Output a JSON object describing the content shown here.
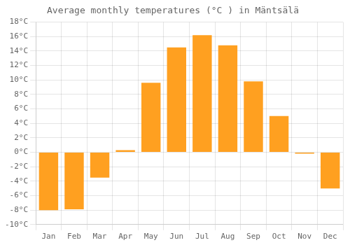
{
  "chart_data": {
    "type": "bar",
    "title": "Average monthly temperatures (°C ) in Mäntsälä",
    "categories": [
      "Jan",
      "Feb",
      "Mar",
      "Apr",
      "May",
      "Jun",
      "Jul",
      "Aug",
      "Sep",
      "Oct",
      "Nov",
      "Dec"
    ],
    "values": [
      -8.0,
      -7.9,
      -3.5,
      0.3,
      9.6,
      14.5,
      16.2,
      14.8,
      9.8,
      5.0,
      -0.2,
      -5.0
    ],
    "color": "#FFA020",
    "ylim": [
      -10,
      18
    ],
    "yticks": [
      {
        "value": -10,
        "label": "-10°C"
      },
      {
        "value": -8,
        "label": "-8°C"
      },
      {
        "value": -6,
        "label": "-6°C"
      },
      {
        "value": -4,
        "label": "-4°C"
      },
      {
        "value": -2,
        "label": "-2°C"
      },
      {
        "value": 0,
        "label": "0°C"
      },
      {
        "value": 2,
        "label": "2°C"
      },
      {
        "value": 4,
        "label": "4°C"
      },
      {
        "value": 6,
        "label": "6°C"
      },
      {
        "value": 8,
        "label": "8°C"
      },
      {
        "value": 10,
        "label": "10°C"
      },
      {
        "value": 12,
        "label": "12°C"
      },
      {
        "value": 14,
        "label": "14°C"
      },
      {
        "value": 16,
        "label": "16°C"
      },
      {
        "value": 18,
        "label": "18°C"
      }
    ],
    "grid": true
  }
}
